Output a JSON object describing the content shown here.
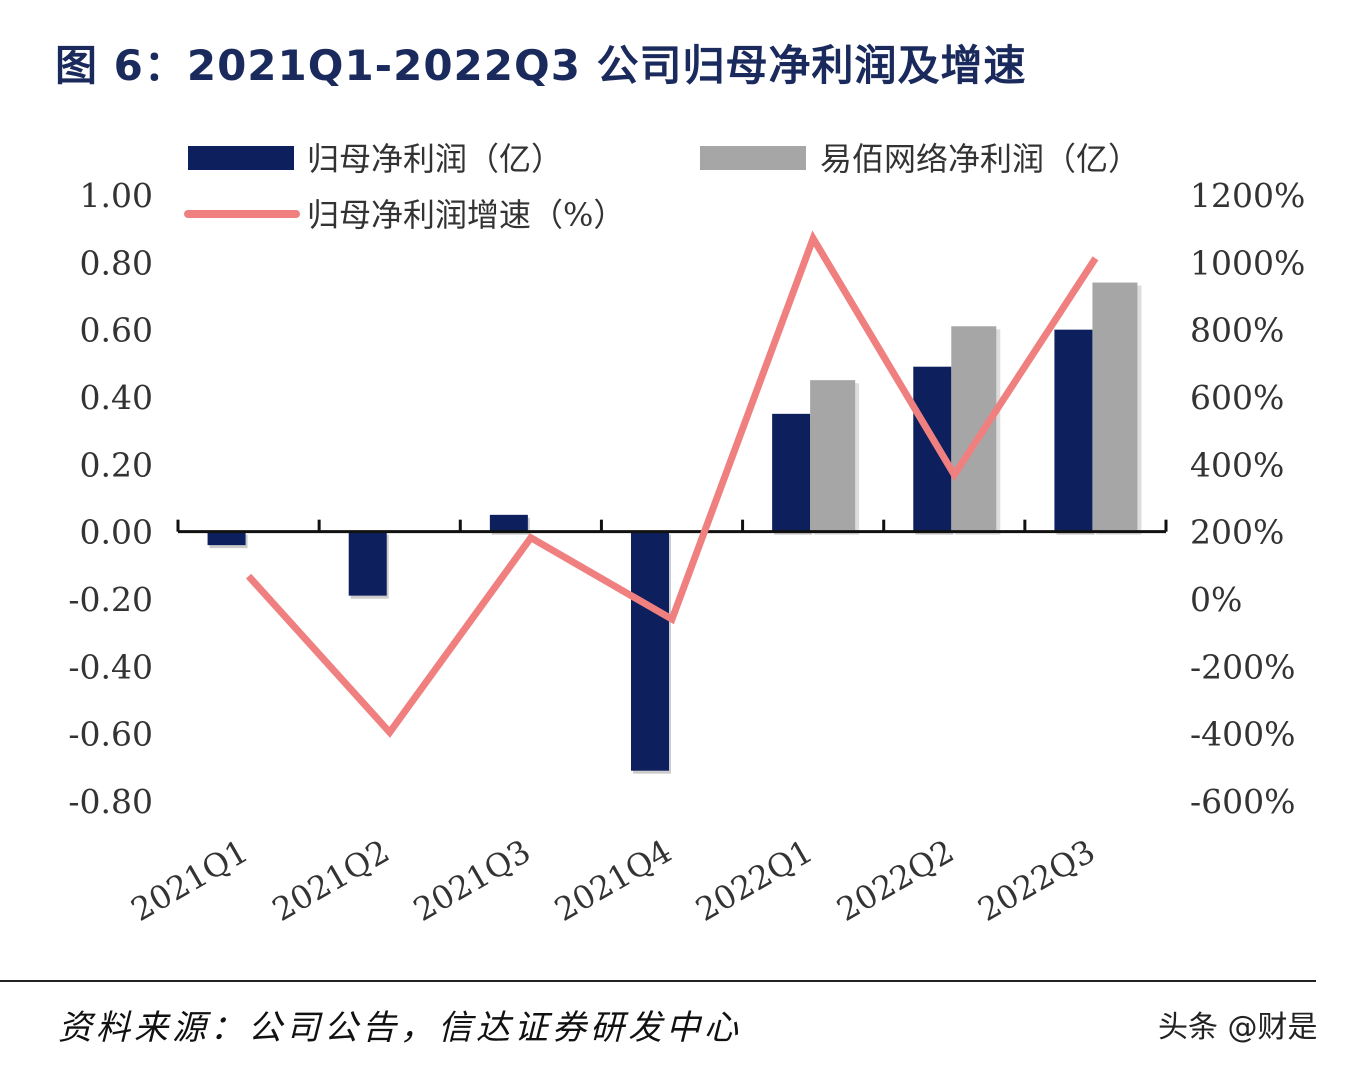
{
  "title": "图 6：2021Q1-2022Q3 公司归母净利润及增速",
  "source": "资料来源：公司公告，信达证券研发中心",
  "watermark": "头条 @财是",
  "chart_data": {
    "type": "bar+line",
    "title": "图 6：2021Q1-2022Q3 公司归母净利润及增速",
    "categories": [
      "2021Q1",
      "2021Q2",
      "2021Q3",
      "2021Q4",
      "2022Q1",
      "2022Q2",
      "2022Q3"
    ],
    "series": [
      {
        "name": "归母净利润（亿）",
        "type": "bar",
        "axis": "left",
        "color": "#0d1f5c",
        "values": [
          -0.04,
          -0.19,
          0.05,
          -0.71,
          0.35,
          0.49,
          0.6
        ]
      },
      {
        "name": "易佰网络净利润（亿）",
        "type": "bar",
        "axis": "left",
        "color": "#a6a6a6",
        "values": [
          null,
          null,
          null,
          null,
          0.45,
          0.61,
          0.74
        ]
      },
      {
        "name": "归母净利润增速（%）",
        "type": "line",
        "axis": "right",
        "color": "#f08080",
        "values": [
          68,
          -396,
          182,
          -60,
          1071,
          369,
          1012
        ]
      }
    ],
    "left_axis": {
      "ylim": [
        -0.8,
        1.0
      ],
      "ticks": [
        "1.00",
        "0.80",
        "0.60",
        "0.40",
        "0.20",
        "0.00",
        "-0.20",
        "-0.40",
        "-0.60",
        "-0.80"
      ]
    },
    "right_axis": {
      "ylim": [
        -600,
        1200
      ],
      "ticks": [
        "1200%",
        "1000%",
        "800%",
        "600%",
        "400%",
        "200%",
        "0%",
        "-200%",
        "-400%",
        "-600%"
      ]
    },
    "legend_placement": "top",
    "grid": false
  }
}
